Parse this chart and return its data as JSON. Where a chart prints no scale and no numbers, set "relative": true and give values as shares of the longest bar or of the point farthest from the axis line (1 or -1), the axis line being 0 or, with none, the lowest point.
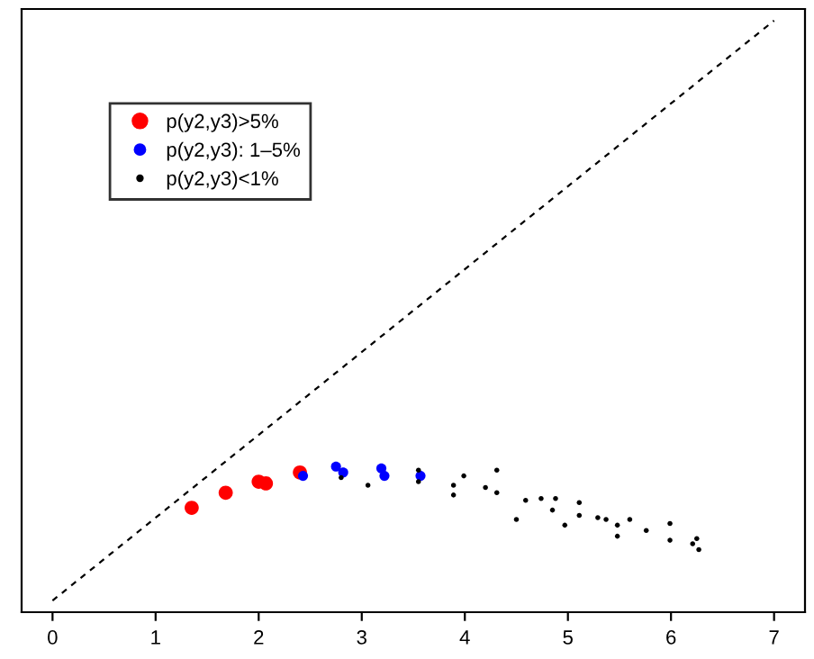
{
  "chart_data": {
    "type": "scatter",
    "relative": true,
    "xlim": [
      -0.3,
      7.3
    ],
    "xticks": [
      0,
      1,
      2,
      3,
      4,
      5,
      6,
      7
    ],
    "tick_labels": "x",
    "grid": false,
    "legend": "top left",
    "marker": "circle",
    "series": [
      {
        "name": "p(y2,y3)>5%",
        "color": "#ff0000",
        "x": [
          1.35,
          1.68,
          2.0,
          2.07,
          2.4
        ],
        "values": [
          0.16,
          0.186,
          0.205,
          0.202,
          0.221
        ]
      },
      {
        "name": "p(y2,y3): 1–5%",
        "color": "#0000ff",
        "x": [
          2.43,
          2.75,
          2.82,
          3.19,
          3.22,
          3.57
        ],
        "values": [
          0.215,
          0.231,
          0.221,
          0.228,
          0.215,
          0.215
        ]
      },
      {
        "name": "p(y2,y3)<1%",
        "color": "#000000",
        "x": [
          2.8,
          3.06,
          3.55,
          3.55,
          3.89,
          3.89,
          3.99,
          4.2,
          4.31,
          4.31,
          4.5,
          4.59,
          4.74,
          4.85,
          4.88,
          4.97,
          5.11,
          5.11,
          5.29,
          5.37,
          5.48,
          5.48,
          5.6,
          5.76,
          5.99,
          5.99,
          6.21,
          6.25,
          6.27
        ],
        "values": [
          0.212,
          0.199,
          0.225,
          0.205,
          0.199,
          0.182,
          0.215,
          0.195,
          0.225,
          0.186,
          0.14,
          0.173,
          0.176,
          0.156,
          0.176,
          0.13,
          0.169,
          0.147,
          0.143,
          0.14,
          0.13,
          0.111,
          0.14,
          0.121,
          0.133,
          0.104,
          0.098,
          0.107,
          0.088
        ]
      },
      {
        "type": "line",
        "color": "#000000",
        "line_style": "dashed",
        "marker": "none",
        "x": [
          0,
          7
        ],
        "values": [
          0,
          1
        ]
      }
    ]
  }
}
